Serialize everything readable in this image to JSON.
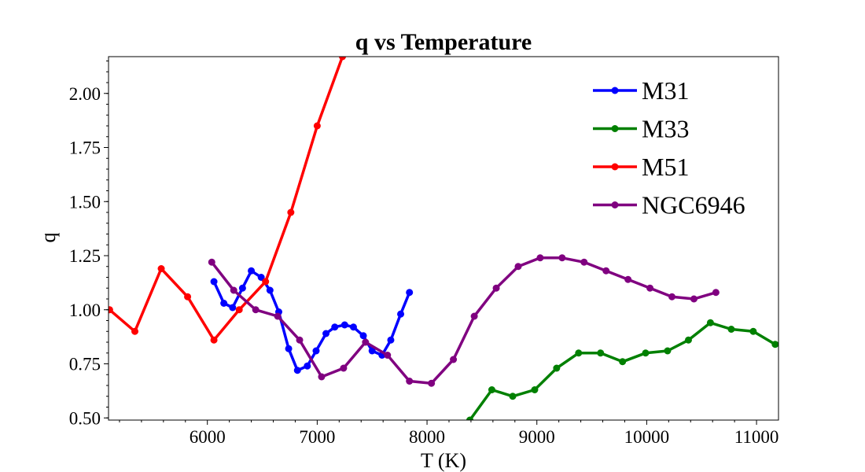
{
  "chart_data": {
    "type": "line",
    "title": "q vs Temperature",
    "xlabel": "T (K)",
    "ylabel": "q",
    "xlim": [
      5100,
      11200
    ],
    "ylim": [
      0.49,
      2.17
    ],
    "xticks": [
      6000,
      7000,
      8000,
      9000,
      10000,
      11000
    ],
    "yticks": [
      0.5,
      0.75,
      1.0,
      1.25,
      1.5,
      1.75,
      2.0
    ],
    "ytick_labels": [
      "0.50",
      "0.75",
      "1.00",
      "1.25",
      "1.50",
      "1.75",
      "2.00"
    ],
    "grid": false,
    "legend_position": "top-right",
    "series": [
      {
        "name": "M31",
        "color": "#0000ff",
        "x": [
          6060,
          6150,
          6230,
          6320,
          6400,
          6490,
          6570,
          6650,
          6740,
          6820,
          6910,
          6990,
          7080,
          7160,
          7250,
          7330,
          7420,
          7500,
          7590,
          7670,
          7760,
          7840
        ],
        "y": [
          1.13,
          1.03,
          1.01,
          1.1,
          1.18,
          1.15,
          1.09,
          0.99,
          0.82,
          0.72,
          0.74,
          0.81,
          0.89,
          0.92,
          0.93,
          0.92,
          0.88,
          0.81,
          0.79,
          0.86,
          0.98,
          1.08
        ]
      },
      {
        "name": "M33",
        "color": "#008000",
        "x": [
          8390,
          8590,
          8780,
          8980,
          9180,
          9380,
          9580,
          9780,
          9990,
          10190,
          10380,
          10580,
          10770,
          10970,
          11170
        ],
        "y": [
          0.49,
          0.63,
          0.6,
          0.63,
          0.73,
          0.8,
          0.8,
          0.76,
          0.8,
          0.81,
          0.86,
          0.94,
          0.91,
          0.9,
          0.84
        ]
      },
      {
        "name": "M51",
        "color": "#ff0000",
        "x": [
          5110,
          5340,
          5580,
          5820,
          6060,
          6290,
          6530,
          6760,
          7000,
          7230
        ],
        "y": [
          1.0,
          0.9,
          1.19,
          1.06,
          0.86,
          1.0,
          1.13,
          1.45,
          1.85,
          2.17
        ]
      },
      {
        "name": "NGC6946",
        "color": "#800080",
        "x": [
          6040,
          6240,
          6440,
          6640,
          6840,
          7040,
          7240,
          7440,
          7640,
          7840,
          8040,
          8240,
          8430,
          8630,
          8830,
          9030,
          9230,
          9430,
          9630,
          9830,
          10030,
          10230,
          10430,
          10630
        ],
        "y": [
          1.22,
          1.09,
          1.0,
          0.97,
          0.86,
          0.69,
          0.73,
          0.85,
          0.79,
          0.67,
          0.66,
          0.77,
          0.97,
          1.1,
          1.2,
          1.24,
          1.24,
          1.22,
          1.18,
          1.14,
          1.1,
          1.06,
          1.05,
          1.08
        ]
      }
    ]
  }
}
